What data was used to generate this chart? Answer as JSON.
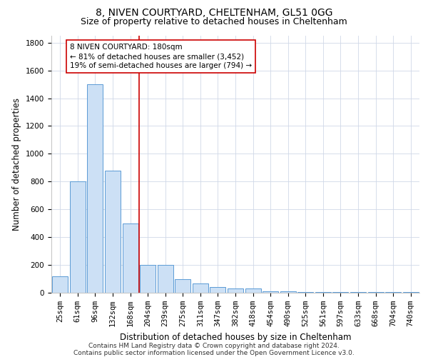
{
  "title": "8, NIVEN COURTYARD, CHELTENHAM, GL51 0GG",
  "subtitle": "Size of property relative to detached houses in Cheltenham",
  "xlabel": "Distribution of detached houses by size in Cheltenham",
  "ylabel": "Number of detached properties",
  "categories": [
    "25sqm",
    "61sqm",
    "96sqm",
    "132sqm",
    "168sqm",
    "204sqm",
    "239sqm",
    "275sqm",
    "311sqm",
    "347sqm",
    "382sqm",
    "418sqm",
    "454sqm",
    "490sqm",
    "525sqm",
    "561sqm",
    "597sqm",
    "633sqm",
    "668sqm",
    "704sqm",
    "740sqm"
  ],
  "values": [
    120,
    800,
    1500,
    880,
    500,
    200,
    200,
    100,
    65,
    40,
    30,
    30,
    10,
    8,
    5,
    5,
    5,
    5,
    3,
    3,
    3
  ],
  "bar_color": "#cce0f5",
  "bar_edge_color": "#5b9bd5",
  "vline_x": 4.5,
  "vline_color": "#cc0000",
  "annotation_line1": "8 NIVEN COURTYARD: 180sqm",
  "annotation_line2": "← 81% of detached houses are smaller (3,452)",
  "annotation_line3": "19% of semi-detached houses are larger (794) →",
  "annotation_box_color": "#ffffff",
  "annotation_box_edge_color": "#cc0000",
  "ylim": [
    0,
    1850
  ],
  "yticks": [
    0,
    200,
    400,
    600,
    800,
    1000,
    1200,
    1400,
    1600,
    1800
  ],
  "footer": "Contains HM Land Registry data © Crown copyright and database right 2024.\nContains public sector information licensed under the Open Government Licence v3.0.",
  "background_color": "#ffffff",
  "grid_color": "#d0d8e8",
  "title_fontsize": 10,
  "subtitle_fontsize": 9,
  "xlabel_fontsize": 8.5,
  "ylabel_fontsize": 8.5,
  "tick_fontsize": 7.5,
  "annotation_fontsize": 7.5,
  "footer_fontsize": 6.5
}
